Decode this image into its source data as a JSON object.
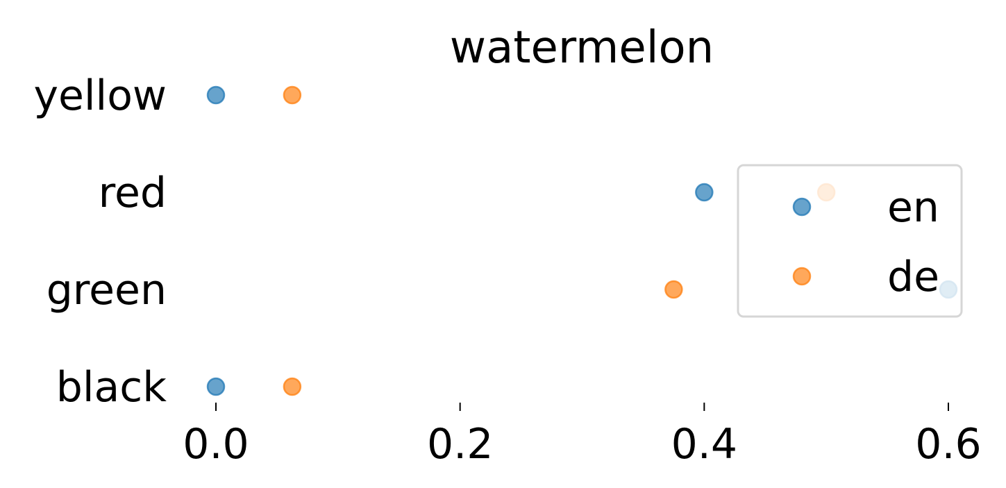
{
  "chart_data": {
    "type": "scatter",
    "title": "watermelon",
    "xlabel": "",
    "ylabel": "",
    "categories": [
      "yellow",
      "red",
      "green",
      "black"
    ],
    "x_ticks": [
      0.0,
      0.2,
      0.4,
      0.6
    ],
    "x_tick_labels": [
      "0.0",
      "0.2",
      "0.4",
      "0.6"
    ],
    "xlim": [
      -0.01,
      0.62
    ],
    "grid": false,
    "legend_position": "right",
    "series": [
      {
        "name": "en",
        "color": "#1f77b4",
        "values": [
          0.0,
          0.4,
          0.6,
          0.0
        ]
      },
      {
        "name": "de",
        "color": "#ff7f0e",
        "values": [
          0.0625,
          0.5,
          0.375,
          0.0625
        ]
      }
    ]
  }
}
